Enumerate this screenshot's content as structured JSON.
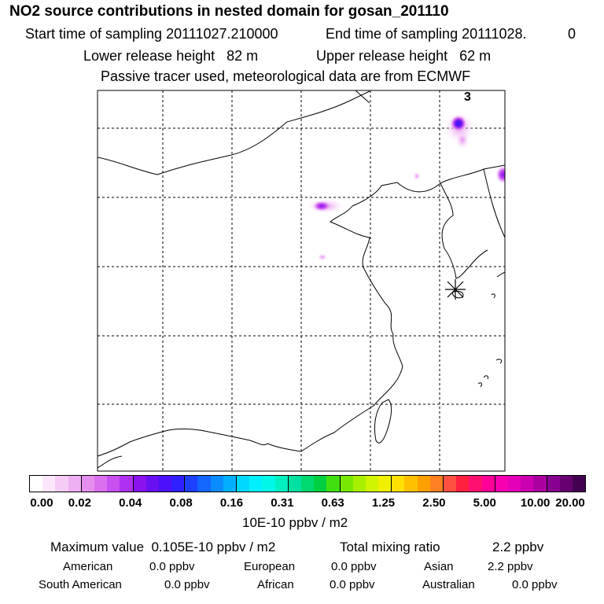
{
  "header": {
    "title": "NO2 source contributions in nested domain for gosan_201110",
    "start_label": "Start time of sampling 20111027.210000",
    "end_label": "End time of sampling 20111028.",
    "end_suffix": "0",
    "lower_label": "Lower release height   82 m",
    "upper_label": "Upper release height   62 m",
    "info": "Passive tracer used, meteorological data are from ECMWF"
  },
  "map": {
    "corner_label": "3",
    "marker": "release-site-asterisk"
  },
  "chart_data": {
    "type": "heatmap",
    "title": "NO2 source contributions in nested domain for gosan_201110",
    "colorbar_unit": "10E-10 ppbv / m2",
    "colorbar_ticks": [
      "0.00",
      "0.02",
      "0.04",
      "0.08",
      "0.16",
      "0.31",
      "0.63",
      "1.25",
      "2.50",
      "5.00",
      "10.00",
      "20.00"
    ],
    "colorbar_colors": [
      "#ffffff",
      "#fbe6fb",
      "#f5ccf5",
      "#eeb0f2",
      "#e48fee",
      "#da70ee",
      "#c84ff0",
      "#b030f2",
      "#8a12ee",
      "#6810f2",
      "#4c10fa",
      "#3020ff",
      "#1e40ff",
      "#1466ff",
      "#0a8cff",
      "#00b0ff",
      "#00d8ff",
      "#00f0ff",
      "#00f8e8",
      "#00f0c0",
      "#00e0a0",
      "#00d870",
      "#00d040",
      "#40e010",
      "#78e800",
      "#a8f000",
      "#d0f400",
      "#f0f000",
      "#ffe000",
      "#ffc000",
      "#ffa000",
      "#ff8020",
      "#ff5040",
      "#ff2040",
      "#ff1070",
      "#ff0098",
      "#f800b0",
      "#e400b8",
      "#cc00b0",
      "#aa00a0",
      "#880090",
      "#660070",
      "#440050"
    ],
    "plumes": [
      {
        "lon_region": "northeast-top",
        "intensity": "0.08-0.16"
      },
      {
        "lon_region": "inner-mongolia",
        "intensity": "0.04-0.08"
      },
      {
        "lon_region": "korea-northeast-edge",
        "intensity": "0.04-0.08"
      }
    ]
  },
  "footer": {
    "max_value": "Maximum value  0.105E-10 ppbv / m2",
    "total_label": "Total mixing ratio",
    "total_value": "2.2 ppbv",
    "regions": [
      {
        "name": "American",
        "value": "0.0 ppbv"
      },
      {
        "name": "European",
        "value": "0.0 ppbv"
      },
      {
        "name": "Asian",
        "value": "2.2 ppbv"
      },
      {
        "name": "South American",
        "value": "0.0 ppbv"
      },
      {
        "name": "African",
        "value": "0.0 ppbv"
      },
      {
        "name": "Australian",
        "value": "0.0 ppbv"
      }
    ]
  }
}
